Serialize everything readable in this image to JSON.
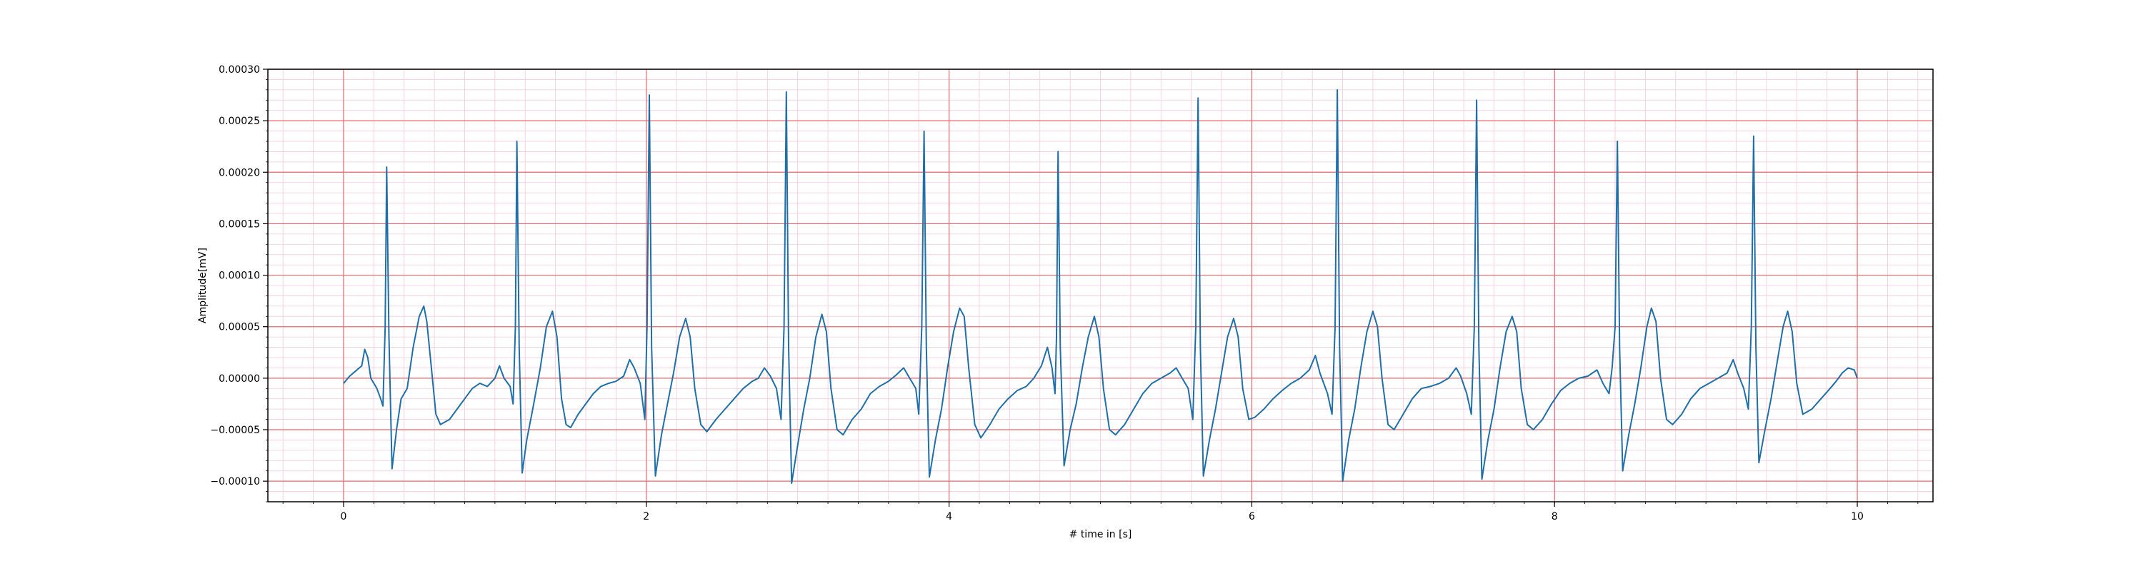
{
  "chart_data": {
    "type": "line",
    "title": "",
    "xlabel": "# time in [s]",
    "ylabel": "Amplitude[mV]",
    "xlim": [
      -0.5,
      10.5
    ],
    "ylim": [
      -0.00012,
      0.0003
    ],
    "x_ticks": [
      0,
      2,
      4,
      6,
      8,
      10
    ],
    "x_tick_labels": [
      "0",
      "2",
      "4",
      "6",
      "8",
      "10"
    ],
    "y_ticks": [
      -0.0001,
      -5e-05,
      0,
      5e-05,
      0.0001,
      0.00015,
      0.0002,
      0.00025,
      0.0003
    ],
    "y_tick_labels": [
      "−0.00010",
      "−0.00005",
      "0.00000",
      "0.00005",
      "0.00010",
      "0.00015",
      "0.00020",
      "0.00025",
      "0.00030"
    ],
    "grid": {
      "major": true,
      "minor": true,
      "major_color": "#e8666e",
      "minor_color": "#f7c8d6"
    },
    "line_color": "#1f6fa8",
    "series": [
      {
        "values": [
          [
            0.0,
            -5e-06
          ],
          [
            0.04,
            2e-06
          ],
          [
            0.08,
            7e-06
          ],
          [
            0.12,
            1.2e-05
          ],
          [
            0.14,
            2.8e-05
          ],
          [
            0.16,
            2e-05
          ],
          [
            0.18,
            0.0
          ],
          [
            0.22,
            -1e-05
          ],
          [
            0.245,
            -2e-05
          ],
          [
            0.26,
            -2.7e-05
          ],
          [
            0.275,
            5e-05
          ],
          [
            0.285,
            0.000205
          ],
          [
            0.3,
            4e-05
          ],
          [
            0.32,
            -8.8e-05
          ],
          [
            0.35,
            -5e-05
          ],
          [
            0.38,
            -2e-05
          ],
          [
            0.42,
            -1e-05
          ],
          [
            0.46,
            3e-05
          ],
          [
            0.5,
            6e-05
          ],
          [
            0.53,
            7e-05
          ],
          [
            0.55,
            5.5e-05
          ],
          [
            0.58,
            1e-05
          ],
          [
            0.61,
            -3.5e-05
          ],
          [
            0.64,
            -4.5e-05
          ],
          [
            0.7,
            -4e-05
          ],
          [
            0.75,
            -3e-05
          ],
          [
            0.8,
            -2e-05
          ],
          [
            0.85,
            -1e-05
          ],
          [
            0.9,
            -5e-06
          ],
          [
            0.95,
            -8e-06
          ],
          [
            1.0,
            0.0
          ],
          [
            1.03,
            1.2e-05
          ],
          [
            1.06,
            0.0
          ],
          [
            1.1,
            -8e-06
          ],
          [
            1.12,
            -2.5e-05
          ],
          [
            1.135,
            5e-05
          ],
          [
            1.145,
            0.00023
          ],
          [
            1.16,
            3e-05
          ],
          [
            1.18,
            -9.2e-05
          ],
          [
            1.21,
            -6e-05
          ],
          [
            1.25,
            -3e-05
          ],
          [
            1.3,
            1e-05
          ],
          [
            1.34,
            5e-05
          ],
          [
            1.38,
            6.5e-05
          ],
          [
            1.41,
            4e-05
          ],
          [
            1.44,
            -2e-05
          ],
          [
            1.47,
            -4.5e-05
          ],
          [
            1.5,
            -4.8e-05
          ],
          [
            1.55,
            -3.5e-05
          ],
          [
            1.6,
            -2.5e-05
          ],
          [
            1.65,
            -1.5e-05
          ],
          [
            1.7,
            -8e-06
          ],
          [
            1.75,
            -5e-06
          ],
          [
            1.8,
            -3e-06
          ],
          [
            1.85,
            2e-06
          ],
          [
            1.89,
            1.8e-05
          ],
          [
            1.92,
            1e-05
          ],
          [
            1.96,
            -5e-06
          ],
          [
            1.99,
            -4e-05
          ],
          [
            2.005,
            5e-05
          ],
          [
            2.02,
            0.000275
          ],
          [
            2.035,
            3e-05
          ],
          [
            2.06,
            -9.5e-05
          ],
          [
            2.1,
            -5.5e-05
          ],
          [
            2.14,
            -2.5e-05
          ],
          [
            2.18,
            5e-06
          ],
          [
            2.22,
            4e-05
          ],
          [
            2.26,
            5.8e-05
          ],
          [
            2.29,
            4e-05
          ],
          [
            2.32,
            -1e-05
          ],
          [
            2.36,
            -4.5e-05
          ],
          [
            2.4,
            -5.2e-05
          ],
          [
            2.46,
            -4e-05
          ],
          [
            2.52,
            -3e-05
          ],
          [
            2.58,
            -2e-05
          ],
          [
            2.64,
            -1e-05
          ],
          [
            2.7,
            -3e-06
          ],
          [
            2.74,
            0.0
          ],
          [
            2.78,
            1e-05
          ],
          [
            2.82,
            2e-06
          ],
          [
            2.86,
            -1e-05
          ],
          [
            2.89,
            -4e-05
          ],
          [
            2.91,
            5e-05
          ],
          [
            2.925,
            0.000278
          ],
          [
            2.94,
            3e-05
          ],
          [
            2.96,
            -0.000102
          ],
          [
            3.0,
            -6.5e-05
          ],
          [
            3.04,
            -3e-05
          ],
          [
            3.08,
            0.0
          ],
          [
            3.12,
            4e-05
          ],
          [
            3.16,
            6.2e-05
          ],
          [
            3.19,
            4.5e-05
          ],
          [
            3.22,
            -1e-05
          ],
          [
            3.26,
            -5e-05
          ],
          [
            3.3,
            -5.5e-05
          ],
          [
            3.36,
            -4e-05
          ],
          [
            3.42,
            -3e-05
          ],
          [
            3.48,
            -1.5e-05
          ],
          [
            3.54,
            -8e-06
          ],
          [
            3.6,
            -3e-06
          ],
          [
            3.65,
            3e-06
          ],
          [
            3.7,
            1e-05
          ],
          [
            3.74,
            0.0
          ],
          [
            3.78,
            -1e-05
          ],
          [
            3.8,
            -3.5e-05
          ],
          [
            3.82,
            5e-05
          ],
          [
            3.835,
            0.00024
          ],
          [
            3.85,
            3e-05
          ],
          [
            3.87,
            -9.6e-05
          ],
          [
            3.91,
            -6e-05
          ],
          [
            3.95,
            -3e-05
          ],
          [
            3.99,
            1e-05
          ],
          [
            4.03,
            4.5e-05
          ],
          [
            4.07,
            6.8e-05
          ],
          [
            4.1,
            6e-05
          ],
          [
            4.13,
            1e-05
          ],
          [
            4.17,
            -4.5e-05
          ],
          [
            4.21,
            -5.8e-05
          ],
          [
            4.27,
            -4.5e-05
          ],
          [
            4.33,
            -3e-05
          ],
          [
            4.39,
            -2e-05
          ],
          [
            4.45,
            -1.2e-05
          ],
          [
            4.51,
            -8e-06
          ],
          [
            4.56,
            0.0
          ],
          [
            4.61,
            1.2e-05
          ],
          [
            4.65,
            3e-05
          ],
          [
            4.68,
            1e-05
          ],
          [
            4.7,
            -1.5e-05
          ],
          [
            4.71,
            4e-05
          ],
          [
            4.72,
            0.00022
          ],
          [
            4.735,
            3e-05
          ],
          [
            4.76,
            -8.5e-05
          ],
          [
            4.8,
            -5e-05
          ],
          [
            4.84,
            -2.5e-05
          ],
          [
            4.88,
            1e-05
          ],
          [
            4.92,
            4e-05
          ],
          [
            4.96,
            6e-05
          ],
          [
            4.99,
            4e-05
          ],
          [
            5.02,
            -1e-05
          ],
          [
            5.06,
            -5e-05
          ],
          [
            5.1,
            -5.5e-05
          ],
          [
            5.16,
            -4.5e-05
          ],
          [
            5.22,
            -3e-05
          ],
          [
            5.28,
            -1.5e-05
          ],
          [
            5.34,
            -5e-06
          ],
          [
            5.4,
            0.0
          ],
          [
            5.46,
            5e-06
          ],
          [
            5.5,
            1e-05
          ],
          [
            5.54,
            0.0
          ],
          [
            5.58,
            -1e-05
          ],
          [
            5.61,
            -4e-05
          ],
          [
            5.63,
            5e-05
          ],
          [
            5.645,
            0.000272
          ],
          [
            5.66,
            3e-05
          ],
          [
            5.68,
            -9.5e-05
          ],
          [
            5.72,
            -6e-05
          ],
          [
            5.76,
            -3e-05
          ],
          [
            5.8,
            5e-06
          ],
          [
            5.84,
            4e-05
          ],
          [
            5.88,
            5.8e-05
          ],
          [
            5.91,
            4e-05
          ],
          [
            5.94,
            -1e-05
          ],
          [
            5.98,
            -4e-05
          ],
          [
            6.02,
            -3.8e-05
          ],
          [
            6.08,
            -3e-05
          ],
          [
            6.14,
            -2e-05
          ],
          [
            6.2,
            -1.2e-05
          ],
          [
            6.26,
            -5e-06
          ],
          [
            6.32,
            0.0
          ],
          [
            6.38,
            8e-06
          ],
          [
            6.42,
            2.2e-05
          ],
          [
            6.45,
            5e-06
          ],
          [
            6.5,
            -1.5e-05
          ],
          [
            6.53,
            -3.5e-05
          ],
          [
            6.55,
            5e-05
          ],
          [
            6.565,
            0.00028
          ],
          [
            6.58,
            3e-05
          ],
          [
            6.6,
            -0.0001
          ],
          [
            6.64,
            -6e-05
          ],
          [
            6.68,
            -3e-05
          ],
          [
            6.72,
            1e-05
          ],
          [
            6.76,
            4.5e-05
          ],
          [
            6.8,
            6.5e-05
          ],
          [
            6.83,
            5e-05
          ],
          [
            6.86,
            0.0
          ],
          [
            6.9,
            -4.5e-05
          ],
          [
            6.94,
            -5e-05
          ],
          [
            7.0,
            -3.5e-05
          ],
          [
            7.06,
            -2e-05
          ],
          [
            7.12,
            -1e-05
          ],
          [
            7.18,
            -8e-06
          ],
          [
            7.24,
            -5e-06
          ],
          [
            7.3,
            0.0
          ],
          [
            7.35,
            1e-05
          ],
          [
            7.38,
            2e-06
          ],
          [
            7.42,
            -1.5e-05
          ],
          [
            7.45,
            -3.5e-05
          ],
          [
            7.47,
            5e-05
          ],
          [
            7.485,
            0.00027
          ],
          [
            7.5,
            3e-05
          ],
          [
            7.52,
            -9.8e-05
          ],
          [
            7.56,
            -6e-05
          ],
          [
            7.6,
            -3e-05
          ],
          [
            7.64,
            1e-05
          ],
          [
            7.68,
            4.5e-05
          ],
          [
            7.72,
            6e-05
          ],
          [
            7.75,
            4.5e-05
          ],
          [
            7.78,
            -1e-05
          ],
          [
            7.82,
            -4.5e-05
          ],
          [
            7.86,
            -5e-05
          ],
          [
            7.92,
            -4e-05
          ],
          [
            7.98,
            -2.5e-05
          ],
          [
            8.04,
            -1.2e-05
          ],
          [
            8.1,
            -5e-06
          ],
          [
            8.16,
            0.0
          ],
          [
            8.22,
            2e-06
          ],
          [
            8.28,
            8e-06
          ],
          [
            8.32,
            -5e-06
          ],
          [
            8.36,
            -1.5e-05
          ],
          [
            8.38,
            1e-05
          ],
          [
            8.4,
            5e-05
          ],
          [
            8.415,
            0.00023
          ],
          [
            8.43,
            3e-05
          ],
          [
            8.45,
            -9e-05
          ],
          [
            8.49,
            -5.5e-05
          ],
          [
            8.53,
            -2.5e-05
          ],
          [
            8.57,
            1e-05
          ],
          [
            8.61,
            5e-05
          ],
          [
            8.64,
            6.8e-05
          ],
          [
            8.67,
            5.5e-05
          ],
          [
            8.7,
            0.0
          ],
          [
            8.74,
            -4e-05
          ],
          [
            8.78,
            -4.5e-05
          ],
          [
            8.84,
            -3.5e-05
          ],
          [
            8.9,
            -2e-05
          ],
          [
            8.96,
            -1e-05
          ],
          [
            9.02,
            -5e-06
          ],
          [
            9.08,
            0.0
          ],
          [
            9.14,
            5e-06
          ],
          [
            9.18,
            1.8e-05
          ],
          [
            9.21,
            5e-06
          ],
          [
            9.25,
            -1e-05
          ],
          [
            9.28,
            -3e-05
          ],
          [
            9.3,
            5e-05
          ],
          [
            9.315,
            0.000235
          ],
          [
            9.33,
            3e-05
          ],
          [
            9.35,
            -8.2e-05
          ],
          [
            9.39,
            -5e-05
          ],
          [
            9.43,
            -2e-05
          ],
          [
            9.47,
            1.5e-05
          ],
          [
            9.51,
            5e-05
          ],
          [
            9.54,
            6.5e-05
          ],
          [
            9.57,
            4.5e-05
          ],
          [
            9.6,
            -5e-06
          ],
          [
            9.64,
            -3.5e-05
          ],
          [
            9.7,
            -3e-05
          ],
          [
            9.76,
            -2e-05
          ],
          [
            9.82,
            -1e-05
          ],
          [
            9.86,
            -3e-06
          ],
          [
            9.9,
            5e-06
          ],
          [
            9.94,
            1e-05
          ],
          [
            9.98,
            8e-06
          ],
          [
            10.0,
            0.0
          ]
        ]
      }
    ]
  }
}
